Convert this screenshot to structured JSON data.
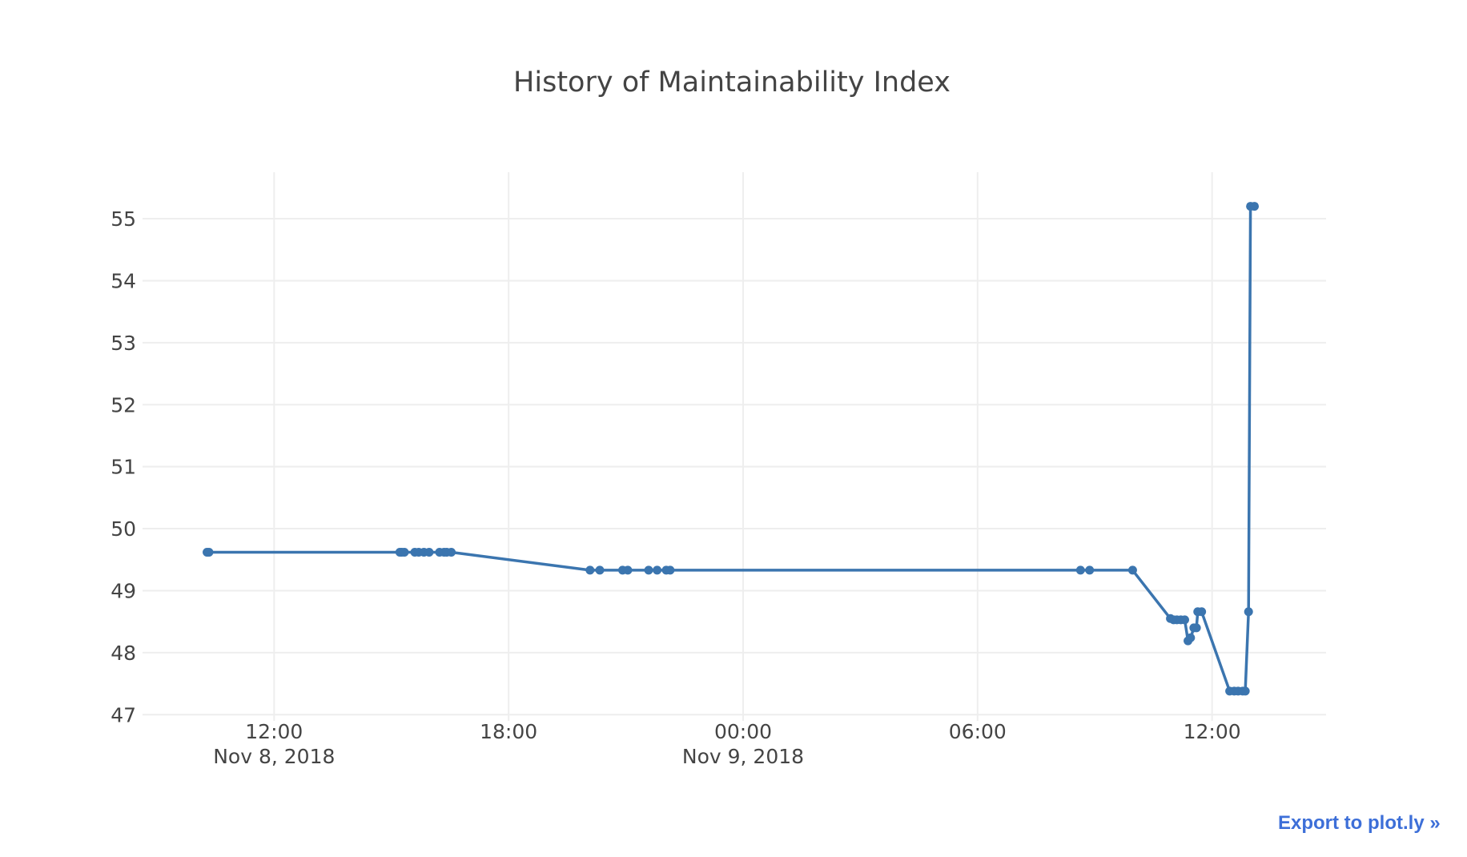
{
  "export_link": {
    "label": "Export to plot.ly »"
  },
  "colors": {
    "series": "#3b75af",
    "grid": "#eeeeee",
    "text": "#444444",
    "link": "#3d6fd8"
  },
  "chart_data": {
    "type": "line",
    "title": "History of Maintainability Index",
    "xlabel": "",
    "ylabel": "",
    "grid": true,
    "xlim": [
      "2018-11-08 08:38",
      "2018-11-09 14:55"
    ],
    "ylim": [
      46.9,
      55.75
    ],
    "x_ticks": [
      {
        "value": "2018-11-08 12:00",
        "label": "12:00",
        "sublabel": "Nov 8, 2018"
      },
      {
        "value": "2018-11-08 18:00",
        "label": "18:00",
        "sublabel": ""
      },
      {
        "value": "2018-11-09 00:00",
        "label": "00:00",
        "sublabel": "Nov 9, 2018"
      },
      {
        "value": "2018-11-09 06:00",
        "label": "06:00",
        "sublabel": ""
      },
      {
        "value": "2018-11-09 12:00",
        "label": "12:00",
        "sublabel": ""
      }
    ],
    "y_ticks": [
      47,
      48,
      49,
      50,
      51,
      52,
      53,
      54,
      55
    ],
    "series": [
      {
        "mode": "lines+markers",
        "x": [
          "2018-11-08 10:17",
          "2018-11-08 10:20",
          "2018-11-08 15:13",
          "2018-11-08 15:16",
          "2018-11-08 15:20",
          "2018-11-08 15:36",
          "2018-11-08 15:42",
          "2018-11-08 15:50",
          "2018-11-08 15:58",
          "2018-11-08 16:14",
          "2018-11-08 16:21",
          "2018-11-08 16:25",
          "2018-11-08 16:32",
          "2018-11-08 20:05",
          "2018-11-08 20:20",
          "2018-11-08 20:55",
          "2018-11-08 21:03",
          "2018-11-08 21:35",
          "2018-11-08 21:48",
          "2018-11-08 22:02",
          "2018-11-08 22:08",
          "2018-11-09 08:38",
          "2018-11-09 08:52",
          "2018-11-09 09:58",
          "2018-11-09 10:56",
          "2018-11-09 11:01",
          "2018-11-09 11:06",
          "2018-11-09 11:12",
          "2018-11-09 11:18",
          "2018-11-09 11:23",
          "2018-11-09 11:27",
          "2018-11-09 11:32",
          "2018-11-09 11:36",
          "2018-11-09 11:38",
          "2018-11-09 11:44",
          "2018-11-09 12:27",
          "2018-11-09 12:34",
          "2018-11-09 12:40",
          "2018-11-09 12:47",
          "2018-11-09 12:51",
          "2018-11-09 12:56",
          "2018-11-09 12:59",
          "2018-11-09 13:05"
        ],
        "y": [
          49.62,
          49.62,
          49.62,
          49.62,
          49.62,
          49.62,
          49.62,
          49.62,
          49.62,
          49.62,
          49.62,
          49.62,
          49.62,
          49.33,
          49.33,
          49.33,
          49.33,
          49.33,
          49.33,
          49.33,
          49.33,
          49.33,
          49.33,
          49.33,
          48.55,
          48.53,
          48.53,
          48.53,
          48.53,
          48.19,
          48.24,
          48.4,
          48.4,
          48.66,
          48.66,
          47.38,
          47.38,
          47.38,
          47.38,
          47.38,
          48.66,
          55.2,
          55.2
        ]
      }
    ]
  }
}
